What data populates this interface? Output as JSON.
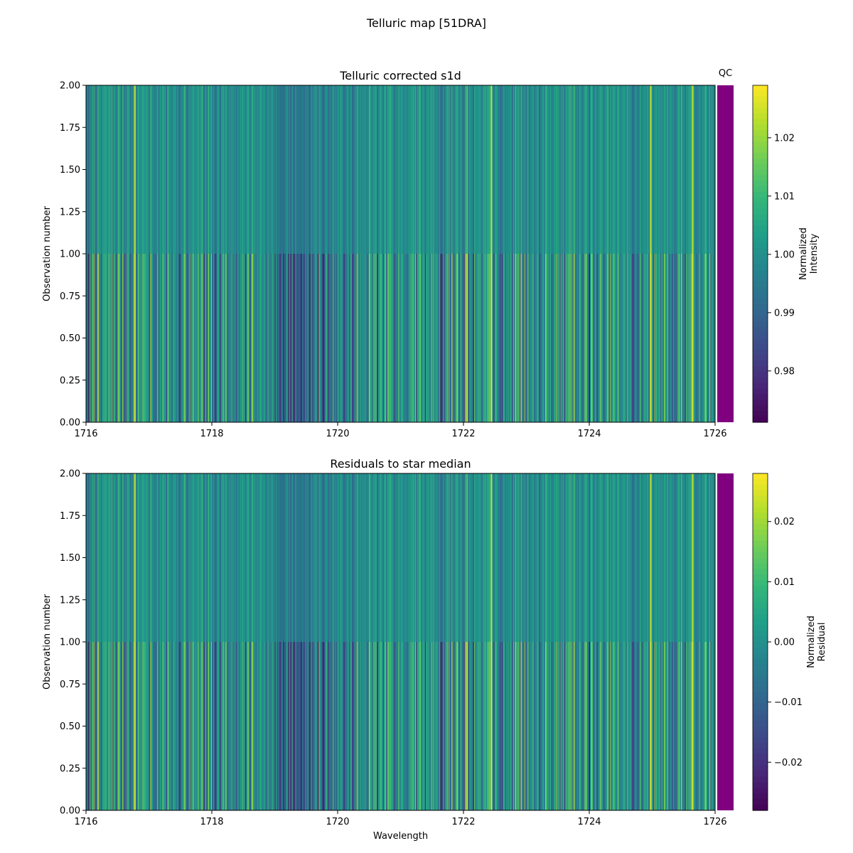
{
  "figure": {
    "suptitle": "Telluric map [51DRA]"
  },
  "chart_data": [
    {
      "type": "heatmap",
      "title": "Telluric corrected s1d",
      "xlabel": "",
      "ylabel": "Observation number",
      "xlim": [
        1716,
        1726
      ],
      "ylim": [
        0,
        2
      ],
      "x_ticks": [
        "1716",
        "1718",
        "1720",
        "1722",
        "1724",
        "1726"
      ],
      "y_ticks": [
        "0.00",
        "0.25",
        "0.50",
        "0.75",
        "1.00",
        "1.25",
        "1.50",
        "1.75",
        "2.00"
      ],
      "rows": [
        {
          "observation": 0,
          "y_range": [
            0,
            1
          ],
          "variation": "stronger"
        },
        {
          "observation": 1,
          "y_range": [
            1,
            2
          ],
          "variation": "weaker"
        }
      ],
      "colormap": "viridis",
      "qc_strip": {
        "label": "QC",
        "color": "#800080"
      },
      "colorbar": {
        "label_line1": "Normalized",
        "label_line2": "Intensity",
        "range": [
          0.9712,
          1.029
        ],
        "ticks": [
          "0.98",
          "0.99",
          "1.00",
          "1.01",
          "1.02"
        ]
      },
      "notable_bright_lines": [
        1716.78,
        1722.44,
        1724.98,
        1725.64
      ],
      "notable_dark_band": [
        1719.0,
        1719.8
      ]
    },
    {
      "type": "heatmap",
      "title": "Residuals to star median",
      "xlabel": "Wavelength",
      "ylabel": "Observation number",
      "xlim": [
        1716,
        1726
      ],
      "ylim": [
        0,
        2
      ],
      "x_ticks": [
        "1716",
        "1718",
        "1720",
        "1722",
        "1724",
        "1726"
      ],
      "y_ticks": [
        "0.00",
        "0.25",
        "0.50",
        "0.75",
        "1.00",
        "1.25",
        "1.50",
        "1.75",
        "2.00"
      ],
      "rows": [
        {
          "observation": 0,
          "y_range": [
            0,
            1
          ],
          "variation": "stronger"
        },
        {
          "observation": 1,
          "y_range": [
            1,
            2
          ],
          "variation": "weaker"
        }
      ],
      "colormap": "viridis",
      "qc_strip": {
        "label": "",
        "color": "#800080"
      },
      "colorbar": {
        "label_line1": "Normalized",
        "label_line2": "Residual",
        "range": [
          -0.028,
          0.028
        ],
        "ticks": [
          "−0.02",
          "−0.01",
          "0.00",
          "0.01",
          "0.02"
        ]
      },
      "notable_bright_lines": [
        1716.78,
        1722.44,
        1724.98,
        1725.64
      ],
      "notable_dark_band": [
        1719.0,
        1719.8
      ]
    }
  ]
}
